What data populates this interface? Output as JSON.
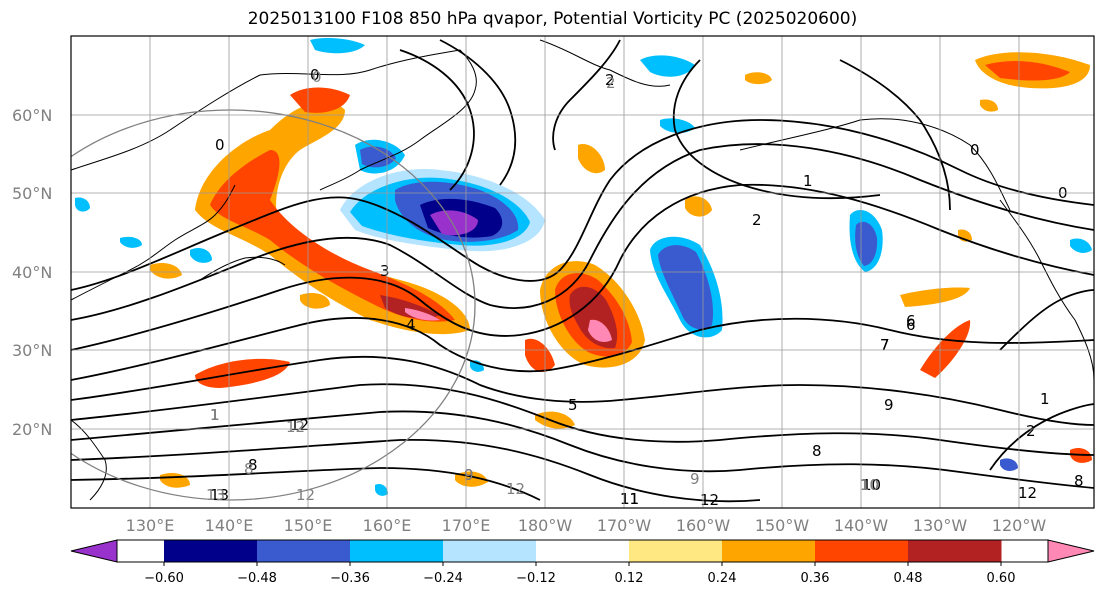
{
  "title": "2025013100 F108 850 hPa qvapor, Potential Vorticity PC (2025020600)",
  "latitude_labels": [
    "60°N",
    "50°N",
    "40°N",
    "30°N",
    "20°N"
  ],
  "longitude_labels": [
    "130°E",
    "140°E",
    "150°E",
    "160°E",
    "170°E",
    "180°W",
    "170°W",
    "160°W",
    "150°W",
    "140°W",
    "130°W",
    "120°W"
  ],
  "colorbar": {
    "colors": [
      "#9932cc",
      "#00008b",
      "#3a5bd0",
      "#00bfff",
      "#b4e4ff",
      "#ffffff",
      "#ffe882",
      "#ffa500",
      "#ff4500",
      "#b22222",
      "#ff88b4"
    ],
    "ticks": [
      "−0.60",
      "−0.48",
      "−0.36",
      "−0.24",
      "−0.12",
      "0.12",
      "0.24",
      "0.36",
      "0.48",
      "0.60"
    ]
  },
  "contour_labels": {
    "black": [
      "0",
      "2",
      "0",
      "1",
      "2",
      "3",
      "4",
      "5",
      "6",
      "7",
      "8",
      "9",
      "10",
      "11",
      "12",
      "13",
      "0",
      "1",
      "2",
      "0",
      "6",
      "7",
      "8",
      "9",
      "10",
      "11",
      "12",
      "1",
      "8",
      "12"
    ],
    "gray": [
      "0",
      "2",
      "1",
      "8",
      "9",
      "12",
      "13",
      "12",
      "12",
      "10",
      "9"
    ]
  }
}
